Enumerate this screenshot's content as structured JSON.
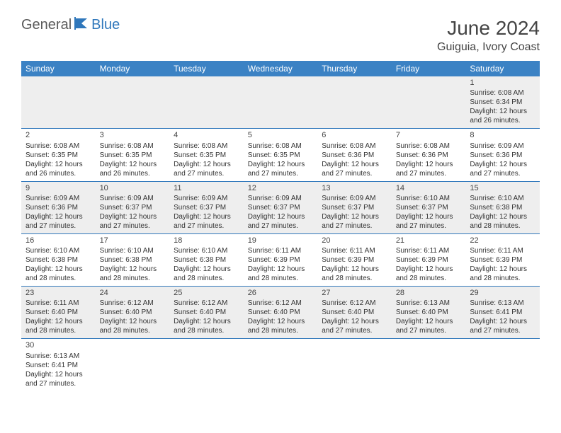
{
  "logo": {
    "general": "General",
    "blue": "Blue"
  },
  "title": "June 2024",
  "location": "Guiguia, Ivory Coast",
  "weekday_header_color": "#3b82c4",
  "weekday_text_color": "#ffffff",
  "row_border_color": "#2f77bb",
  "alt_row_bg": "#eeeeee",
  "weekdays": [
    "Sunday",
    "Monday",
    "Tuesday",
    "Wednesday",
    "Thursday",
    "Friday",
    "Saturday"
  ],
  "weeks": [
    [
      null,
      null,
      null,
      null,
      null,
      null,
      {
        "d": "1",
        "sr": "6:08 AM",
        "ss": "6:34 PM",
        "dl": "12 hours and 26 minutes."
      }
    ],
    [
      {
        "d": "2",
        "sr": "6:08 AM",
        "ss": "6:35 PM",
        "dl": "12 hours and 26 minutes."
      },
      {
        "d": "3",
        "sr": "6:08 AM",
        "ss": "6:35 PM",
        "dl": "12 hours and 26 minutes."
      },
      {
        "d": "4",
        "sr": "6:08 AM",
        "ss": "6:35 PM",
        "dl": "12 hours and 27 minutes."
      },
      {
        "d": "5",
        "sr": "6:08 AM",
        "ss": "6:35 PM",
        "dl": "12 hours and 27 minutes."
      },
      {
        "d": "6",
        "sr": "6:08 AM",
        "ss": "6:36 PM",
        "dl": "12 hours and 27 minutes."
      },
      {
        "d": "7",
        "sr": "6:08 AM",
        "ss": "6:36 PM",
        "dl": "12 hours and 27 minutes."
      },
      {
        "d": "8",
        "sr": "6:09 AM",
        "ss": "6:36 PM",
        "dl": "12 hours and 27 minutes."
      }
    ],
    [
      {
        "d": "9",
        "sr": "6:09 AM",
        "ss": "6:36 PM",
        "dl": "12 hours and 27 minutes."
      },
      {
        "d": "10",
        "sr": "6:09 AM",
        "ss": "6:37 PM",
        "dl": "12 hours and 27 minutes."
      },
      {
        "d": "11",
        "sr": "6:09 AM",
        "ss": "6:37 PM",
        "dl": "12 hours and 27 minutes."
      },
      {
        "d": "12",
        "sr": "6:09 AM",
        "ss": "6:37 PM",
        "dl": "12 hours and 27 minutes."
      },
      {
        "d": "13",
        "sr": "6:09 AM",
        "ss": "6:37 PM",
        "dl": "12 hours and 27 minutes."
      },
      {
        "d": "14",
        "sr": "6:10 AM",
        "ss": "6:37 PM",
        "dl": "12 hours and 27 minutes."
      },
      {
        "d": "15",
        "sr": "6:10 AM",
        "ss": "6:38 PM",
        "dl": "12 hours and 28 minutes."
      }
    ],
    [
      {
        "d": "16",
        "sr": "6:10 AM",
        "ss": "6:38 PM",
        "dl": "12 hours and 28 minutes."
      },
      {
        "d": "17",
        "sr": "6:10 AM",
        "ss": "6:38 PM",
        "dl": "12 hours and 28 minutes."
      },
      {
        "d": "18",
        "sr": "6:10 AM",
        "ss": "6:38 PM",
        "dl": "12 hours and 28 minutes."
      },
      {
        "d": "19",
        "sr": "6:11 AM",
        "ss": "6:39 PM",
        "dl": "12 hours and 28 minutes."
      },
      {
        "d": "20",
        "sr": "6:11 AM",
        "ss": "6:39 PM",
        "dl": "12 hours and 28 minutes."
      },
      {
        "d": "21",
        "sr": "6:11 AM",
        "ss": "6:39 PM",
        "dl": "12 hours and 28 minutes."
      },
      {
        "d": "22",
        "sr": "6:11 AM",
        "ss": "6:39 PM",
        "dl": "12 hours and 28 minutes."
      }
    ],
    [
      {
        "d": "23",
        "sr": "6:11 AM",
        "ss": "6:40 PM",
        "dl": "12 hours and 28 minutes."
      },
      {
        "d": "24",
        "sr": "6:12 AM",
        "ss": "6:40 PM",
        "dl": "12 hours and 28 minutes."
      },
      {
        "d": "25",
        "sr": "6:12 AM",
        "ss": "6:40 PM",
        "dl": "12 hours and 28 minutes."
      },
      {
        "d": "26",
        "sr": "6:12 AM",
        "ss": "6:40 PM",
        "dl": "12 hours and 28 minutes."
      },
      {
        "d": "27",
        "sr": "6:12 AM",
        "ss": "6:40 PM",
        "dl": "12 hours and 27 minutes."
      },
      {
        "d": "28",
        "sr": "6:13 AM",
        "ss": "6:40 PM",
        "dl": "12 hours and 27 minutes."
      },
      {
        "d": "29",
        "sr": "6:13 AM",
        "ss": "6:41 PM",
        "dl": "12 hours and 27 minutes."
      }
    ],
    [
      {
        "d": "30",
        "sr": "6:13 AM",
        "ss": "6:41 PM",
        "dl": "12 hours and 27 minutes."
      },
      null,
      null,
      null,
      null,
      null,
      null
    ]
  ],
  "labels": {
    "sunrise": "Sunrise: ",
    "sunset": "Sunset: ",
    "daylight": "Daylight: "
  }
}
